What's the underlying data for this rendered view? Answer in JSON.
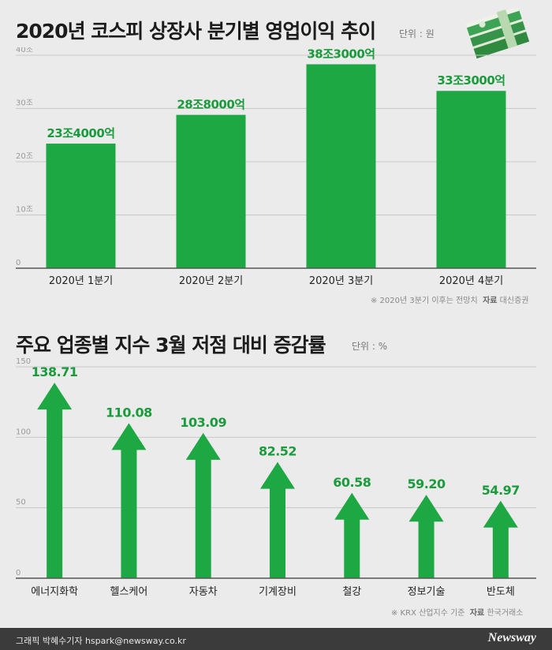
{
  "colors": {
    "bar": "#1ea844",
    "value_label": "#1a9b3c",
    "grid": "#c8c8c8",
    "axis": "#555555"
  },
  "chart1": {
    "title": "2020년 코스피 상장사 분기별 영업이익 추이",
    "unit": "단위 : 원",
    "note": "※ 2020년 3분기 이후는 전망치",
    "source_label": "자료",
    "source": "대신증권",
    "icon": "money-stack-icon"
  },
  "chart2": {
    "title": "주요 업종별 지수 3월 저점 대비 증감률",
    "unit": "단위 : %",
    "note": "※ KRX 산업지수 기준",
    "source_label": "자료",
    "source": "한국거래소"
  },
  "footer": {
    "credit": "그래픽 박혜수기자 hspark@newsway.co.kr",
    "brand": "Newsway"
  },
  "chart_data": [
    {
      "type": "bar",
      "categories": [
        "2020년 1분기",
        "2020년 2분기",
        "2020년 3분기",
        "2020년 4분기"
      ],
      "values": [
        23.4,
        28.8,
        38.3,
        33.3
      ],
      "value_labels": [
        "23조4000억",
        "28조8000억",
        "38조3000억",
        "33조3000억"
      ],
      "ylim": [
        0,
        40
      ],
      "yticks": [
        0,
        10,
        20,
        30,
        40
      ],
      "ytick_labels": [
        "0",
        "10조",
        "20조",
        "30조",
        "40조"
      ],
      "grid": true
    },
    {
      "type": "bar",
      "categories": [
        "에너지화학",
        "헬스케어",
        "자동차",
        "기계장비",
        "철강",
        "정보기술",
        "반도체"
      ],
      "values": [
        138.71,
        110.08,
        103.09,
        82.52,
        60.58,
        59.2,
        54.97
      ],
      "value_labels": [
        "138.71",
        "110.08",
        "103.09",
        "82.52",
        "60.58",
        "59.20",
        "54.97"
      ],
      "ylim": [
        0,
        150
      ],
      "yticks": [
        0,
        50,
        100,
        150
      ],
      "ytick_labels": [
        "0",
        "50",
        "100",
        "150"
      ],
      "grid": true
    }
  ]
}
